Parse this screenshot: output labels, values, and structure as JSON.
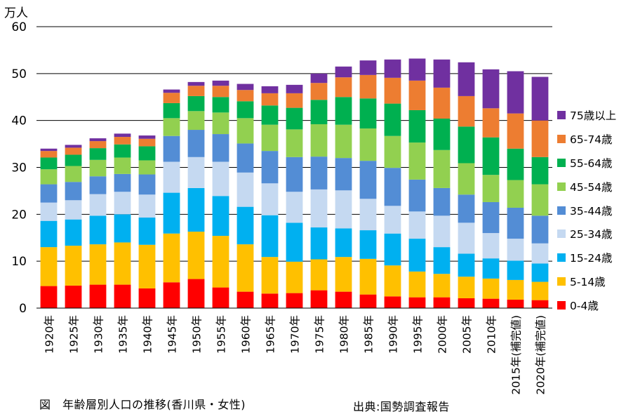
{
  "chart_data": {
    "type": "bar",
    "stacked": true,
    "unit_label": "万人",
    "title": "図　年齢層別人口の推移(香川県・女性)",
    "source": "出典:国勢調査報告",
    "categories": [
      "1920年",
      "1925年",
      "1930年",
      "1935年",
      "1940年",
      "1945年",
      "1950年",
      "1955年",
      "1960年",
      "1965年",
      "1970年",
      "1975年",
      "1980年",
      "1985年",
      "1990年",
      "1995年",
      "2000年",
      "2005年",
      "2010年",
      "2015年(補完値)",
      "2020年(補完値)"
    ],
    "ylim": [
      0,
      60
    ],
    "yticks": [
      0,
      10,
      20,
      30,
      40,
      50,
      60
    ],
    "grid": true,
    "legend_position": "right",
    "series": [
      {
        "name": "0-4歳",
        "color": "#ff0000",
        "values": [
          4.7,
          4.8,
          5.0,
          5.0,
          4.2,
          5.5,
          6.2,
          4.4,
          3.5,
          3.1,
          3.2,
          3.8,
          3.5,
          2.9,
          2.5,
          2.3,
          2.3,
          2.1,
          2.0,
          1.8,
          1.7
        ]
      },
      {
        "name": "5-14歳",
        "color": "#ffc000",
        "values": [
          8.3,
          8.5,
          8.6,
          9.0,
          9.3,
          10.4,
          10.1,
          11.0,
          10.1,
          7.8,
          6.7,
          6.6,
          7.4,
          7.6,
          6.6,
          5.5,
          5.0,
          4.6,
          4.3,
          4.2,
          3.9
        ]
      },
      {
        "name": "15-24歳",
        "color": "#00b0f0",
        "values": [
          5.6,
          5.6,
          6.1,
          6.0,
          5.8,
          8.7,
          9.3,
          8.5,
          8.0,
          8.9,
          8.3,
          6.8,
          6.1,
          6.1,
          6.8,
          7.0,
          5.7,
          4.9,
          4.3,
          4.1,
          3.9
        ]
      },
      {
        "name": "25-34歳",
        "color": "#c5d9f1",
        "values": [
          3.9,
          4.1,
          4.6,
          4.8,
          4.9,
          6.6,
          6.6,
          7.3,
          7.3,
          6.8,
          6.6,
          8.1,
          8.1,
          6.7,
          5.9,
          5.8,
          6.7,
          6.6,
          5.4,
          4.7,
          4.3
        ]
      },
      {
        "name": "35-44歳",
        "color": "#538dd5",
        "values": [
          3.9,
          3.9,
          3.8,
          3.8,
          4.3,
          5.5,
          5.8,
          5.9,
          6.2,
          6.9,
          7.4,
          7.0,
          6.9,
          8.1,
          8.1,
          6.8,
          5.9,
          6.0,
          6.6,
          6.6,
          5.9
        ]
      },
      {
        "name": "45-54歳",
        "color": "#92d050",
        "values": [
          3.2,
          3.4,
          3.5,
          3.5,
          3.0,
          3.8,
          4.0,
          4.6,
          5.4,
          5.6,
          5.9,
          6.9,
          7.1,
          6.9,
          6.8,
          7.9,
          8.1,
          6.7,
          5.8,
          5.9,
          6.7
        ]
      },
      {
        "name": "55-64歳",
        "color": "#00b050",
        "values": [
          2.5,
          2.4,
          2.5,
          2.8,
          3.0,
          3.2,
          3.2,
          3.3,
          3.6,
          4.1,
          4.6,
          5.2,
          5.9,
          6.4,
          6.9,
          6.9,
          6.7,
          7.8,
          8.0,
          6.7,
          5.8
        ]
      },
      {
        "name": "65-74歳",
        "color": "#ed7d31",
        "values": [
          1.4,
          1.5,
          1.5,
          1.6,
          1.6,
          2.2,
          2.2,
          2.4,
          2.4,
          2.6,
          3.1,
          3.6,
          4.2,
          5.0,
          5.5,
          6.3,
          6.6,
          6.5,
          6.2,
          7.5,
          7.8
        ]
      },
      {
        "name": "75歳以上",
        "color": "#7030a0",
        "values": [
          0.5,
          0.6,
          0.6,
          0.7,
          0.7,
          0.7,
          0.8,
          1.1,
          1.3,
          1.5,
          1.8,
          2.0,
          2.3,
          3.1,
          3.9,
          4.7,
          6.0,
          7.2,
          8.3,
          9.0,
          9.3
        ]
      }
    ]
  }
}
